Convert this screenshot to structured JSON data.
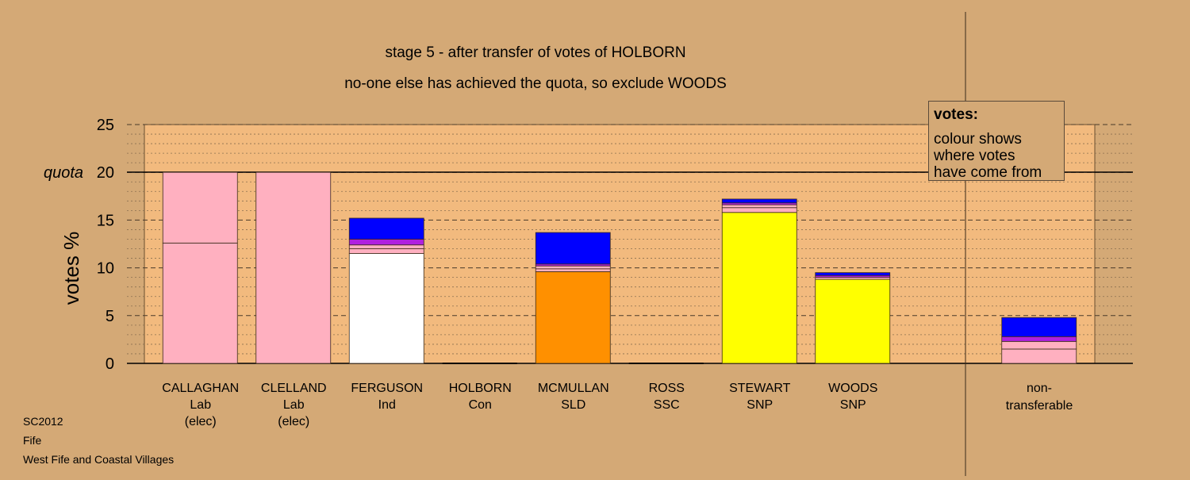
{
  "chart_data": {
    "type": "bar",
    "stacked": true,
    "title": "stage 5 - after transfer of votes of HOLBORN",
    "subtitle": "no-one else has achieved the quota, so exclude WOODS",
    "ylabel": "votes %",
    "ylim": [
      0,
      25
    ],
    "yticks": [
      0,
      5,
      10,
      15,
      20,
      25
    ],
    "quota": 20,
    "quota_label": "quota",
    "grid": true,
    "categories": [
      {
        "name": "CALLAGHAN",
        "party": "Lab",
        "status": "(elec)"
      },
      {
        "name": "CLELLAND",
        "party": "Lab",
        "status": "(elec)"
      },
      {
        "name": "FERGUSON",
        "party": "Ind",
        "status": ""
      },
      {
        "name": "HOLBORN",
        "party": "Con",
        "status": ""
      },
      {
        "name": "MCMULLAN",
        "party": "SLD",
        "status": ""
      },
      {
        "name": "ROSS",
        "party": "SSC",
        "status": ""
      },
      {
        "name": "STEWART",
        "party": "SNP",
        "status": ""
      },
      {
        "name": "WOODS",
        "party": "SNP",
        "status": ""
      }
    ],
    "nontransferable": {
      "line1": "non-",
      "line2": "transferable"
    },
    "stacks": [
      [
        {
          "value": 12.6,
          "color": "#ffb0c0"
        },
        {
          "value": 7.4,
          "color": "#ffb0c0"
        }
      ],
      [
        {
          "value": 20.0,
          "color": "#ffb0c0"
        }
      ],
      [
        {
          "value": 11.5,
          "color": "#ffffff"
        },
        {
          "value": 0.5,
          "color": "#ffb0c0"
        },
        {
          "value": 0.4,
          "color": "#ffb0c0"
        },
        {
          "value": 0.6,
          "color": "#b020e0"
        },
        {
          "value": 2.2,
          "color": "#0000ff"
        }
      ],
      [],
      [
        {
          "value": 9.6,
          "color": "#ff9000"
        },
        {
          "value": 0.3,
          "color": "#ffb0c0"
        },
        {
          "value": 0.3,
          "color": "#ffb0c0"
        },
        {
          "value": 0.2,
          "color": "#b020e0"
        },
        {
          "value": 3.3,
          "color": "#0000ff"
        }
      ],
      [],
      [
        {
          "value": 15.8,
          "color": "#ffff00"
        },
        {
          "value": 0.5,
          "color": "#ffb0c0"
        },
        {
          "value": 0.3,
          "color": "#ffb0c0"
        },
        {
          "value": 0.2,
          "color": "#b020e0"
        },
        {
          "value": 0.4,
          "color": "#0000ff"
        }
      ],
      [
        {
          "value": 8.8,
          "color": "#ffff00"
        },
        {
          "value": 0.2,
          "color": "#ffb0c0"
        },
        {
          "value": 0.2,
          "color": "#b020e0"
        },
        {
          "value": 0.3,
          "color": "#0000ff"
        }
      ],
      [],
      [
        {
          "value": 1.5,
          "color": "#ffb0c0"
        },
        {
          "value": 0.8,
          "color": "#ffb0c0"
        },
        {
          "value": 0.5,
          "color": "#b020e0"
        },
        {
          "value": 2.0,
          "color": "#0000ff"
        }
      ]
    ]
  },
  "legend": {
    "title": "votes:",
    "line1": "colour shows",
    "line2": "where votes",
    "line3": "have come from"
  },
  "footer": {
    "line1": "SC2012",
    "line2": "Fife",
    "line3": "West Fife and Coastal Villages"
  },
  "colors": {
    "background": "#d4a976",
    "plot_area": "#f2ba7e"
  }
}
